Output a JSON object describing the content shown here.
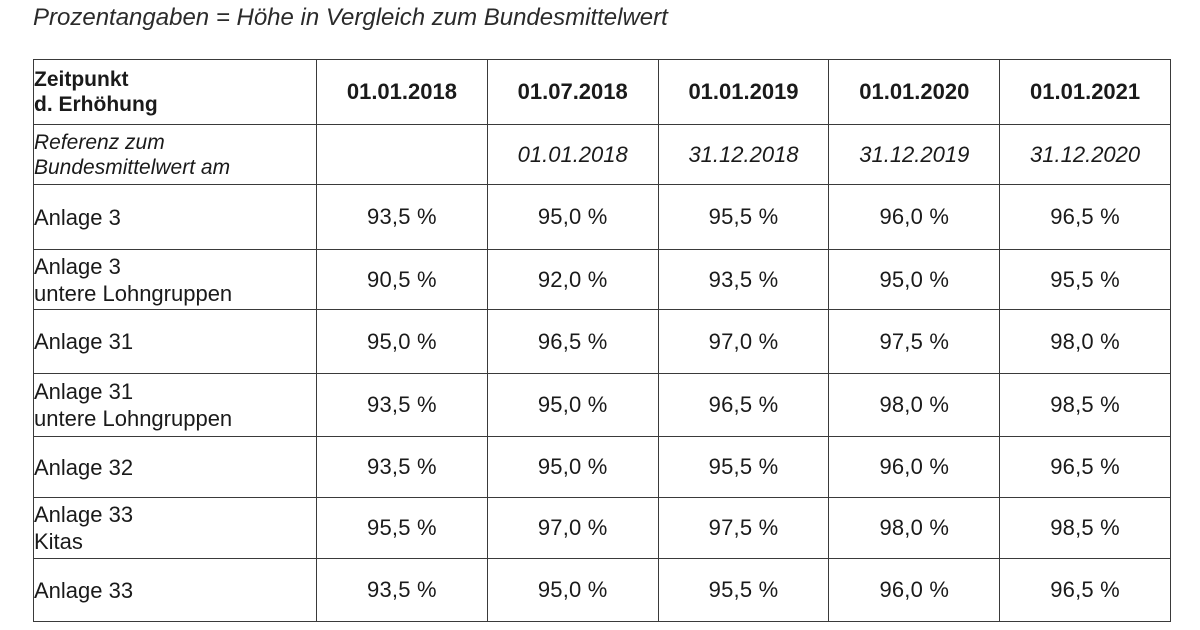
{
  "caption": "Prozentangaben = Höhe in Vergleich zum Bundesmittelwert",
  "header": {
    "label_line1": "Zeitpunkt",
    "label_line2": "d. Erhöhung",
    "dates": [
      "01.01.2018",
      "01.07.2018",
      "01.01.2019",
      "01.01.2020",
      "01.01.2021"
    ]
  },
  "reference": {
    "label_line1": "Referenz zum",
    "label_line2": "Bundesmittelwert am",
    "dates": [
      "",
      "01.01.2018",
      "31.12.2018",
      "31.12.2019",
      "31.12.2020"
    ]
  },
  "rows": [
    {
      "label_line1": "Anlage 3",
      "label_line2": "",
      "values": [
        "93,5 %",
        "95,0 %",
        "95,5 %",
        "96,0 %",
        "96,5 %"
      ]
    },
    {
      "label_line1": "Anlage 3",
      "label_line2": "untere Lohngruppen",
      "values": [
        "90,5 %",
        "92,0 %",
        "93,5 %",
        "95,0 %",
        "95,5 %"
      ]
    },
    {
      "label_line1": "Anlage 31",
      "label_line2": "",
      "values": [
        "95,0 %",
        "96,5 %",
        "97,0 %",
        "97,5 %",
        "98,0 %"
      ]
    },
    {
      "label_line1": "Anlage 31",
      "label_line2": "untere Lohngruppen",
      "values": [
        "93,5 %",
        "95,0 %",
        "96,5 %",
        "98,0 %",
        "98,5 %"
      ]
    },
    {
      "label_line1": "Anlage 32",
      "label_line2": "",
      "values": [
        "93,5 %",
        "95,0 %",
        "95,5 %",
        "96,0 %",
        "96,5 %"
      ]
    },
    {
      "label_line1": "Anlage 33",
      "label_line2": "Kitas",
      "values": [
        "95,5 %",
        "97,0 %",
        "97,5 %",
        "98,0 %",
        "98,5 %"
      ]
    },
    {
      "label_line1": "Anlage 33",
      "label_line2": "",
      "values": [
        "93,5 %",
        "95,0 %",
        "95,5 %",
        "96,0 %",
        "96,5 %"
      ]
    }
  ]
}
